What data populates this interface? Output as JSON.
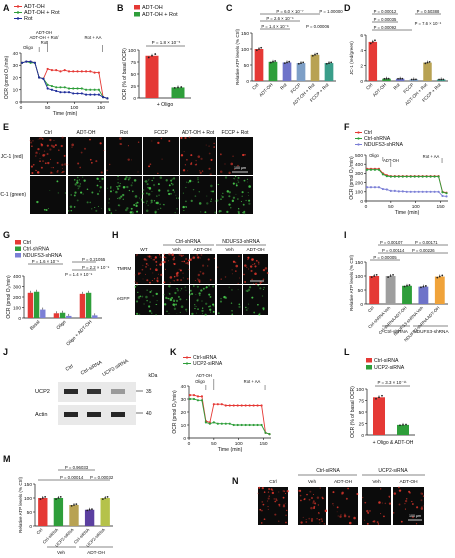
{
  "panels": {
    "A": {
      "letter": "A",
      "legend": [
        "ADT-OH",
        "ADT-OH + Rot",
        "Rot"
      ],
      "colors": [
        "#e53935",
        "#2e9e3a",
        "#1e2c9a"
      ],
      "ylabel": "OCR (pmol O₂/min)",
      "xlabel": "Time (min)",
      "ann": [
        "ADT-OH",
        "ADT-OH + Rot/",
        "Rot",
        "Rot + AA",
        "Oligo"
      ],
      "yticks": [
        "40",
        "30",
        "20",
        "10",
        "0"
      ],
      "xticks": [
        "0",
        "50",
        "100",
        "150"
      ]
    },
    "B": {
      "letter": "B",
      "legend": [
        "ADT-OH",
        "ADT-OH + Rot"
      ],
      "colors": [
        "#e53935",
        "#2e9e3a"
      ],
      "ylabel": "OCR (% of basal OCR)",
      "pval": "P = 1.8 × 10⁻⁵",
      "xlabel": "+ Oligo",
      "yticks": [
        "100",
        "75",
        "50",
        "25",
        "0"
      ]
    },
    "C": {
      "letter": "C",
      "ylabel": "Relative ATP levels (% Ctrl)",
      "p": [
        "P = 6.0 × 10⁻⁷",
        "P = 1.00000",
        "P = 2.6 × 10⁻⁶",
        "P = 1.4 × 10⁻⁶",
        "P = 0.00006"
      ],
      "yticks": [
        "150",
        "100",
        "50",
        "0"
      ]
    },
    "D": {
      "letter": "D",
      "ylabel": "JC-1 (red/green)",
      "p": [
        "P = 0.00012",
        "P = 0.50388",
        "P = 0.00035",
        "P = 0.00092",
        "P = 7.6 × 10⁻⁶"
      ],
      "yticks": [
        "6",
        "4",
        "2",
        "0"
      ]
    },
    "E": {
      "letter": "E",
      "cols": [
        "Ctrl",
        "ADT-OH",
        "Rot",
        "FCCP",
        "ADT-OH + Rot",
        "FCCP + Rot"
      ],
      "rows": [
        "JC-1 (red)",
        "JC-1 (green)"
      ],
      "scale": "100 μm"
    },
    "F": {
      "letter": "F",
      "legend": [
        "Ctrl",
        "Ctrl-shRNA",
        "NDUFS3-shRNA"
      ],
      "colors": [
        "#e53935",
        "#2e9e3a",
        "#7b7fd6"
      ],
      "ann": [
        "Oligo",
        "ADT-OH",
        "Rot + AA"
      ],
      "ylabel": "OCR (pmol O₂/min)",
      "xlabel": "Time (min)",
      "yticks": [
        "500",
        "400",
        "300",
        "200",
        "100",
        "0"
      ],
      "xticks": [
        "0",
        "50",
        "100",
        "150"
      ]
    },
    "G": {
      "letter": "G",
      "legend": [
        "Ctrl",
        "Ctrl-shRNA",
        "NDUFS3-shRNA"
      ],
      "colors": [
        "#e53935",
        "#2e9e3a",
        "#7b7fd6"
      ],
      "ylabel": "OCR (pmol O₂/min)",
      "p": [
        "P = 1.6 × 10⁻⁵",
        "P = 0.21055",
        "P = 2.2 × 10⁻⁵",
        "P = 1.4 × 10⁻⁵"
      ],
      "yticks": [
        "400",
        "300",
        "200",
        "100",
        "0"
      ]
    },
    "H": {
      "letter": "H",
      "groups": [
        "Ctrl-shRNA",
        "NDUFS3-shRNA"
      ],
      "cols": [
        "WT",
        "Veh",
        "ADT-OH",
        "Veh",
        "ADT-OH"
      ],
      "rows": [
        "TMRM",
        "eGFP"
      ],
      "scale": "100 μm"
    },
    "I": {
      "letter": "I",
      "ylabel": "Relative ATP levels (% Ctrl)",
      "p": [
        "P = 0.00107",
        "P = 0.00171",
        "P = 0.00114",
        "P = 0.00226",
        "P = 0.00005"
      ],
      "groups": [
        "Ctrl-shRNA",
        "NDUFS3-shRNA"
      ],
      "yticks": [
        "150",
        "100",
        "50",
        "0"
      ]
    },
    "J": {
      "letter": "J",
      "cols": [
        "Ctrl",
        "Ctrl-siRNA",
        "UCP2-siRNA"
      ],
      "rows": [
        "UCP2",
        "Actin"
      ],
      "kda": "kDa",
      "mw": [
        "35",
        "40"
      ]
    },
    "K": {
      "letter": "K",
      "legend": [
        "Ctrl-siRNA",
        "UCP2-siRNA"
      ],
      "colors": [
        "#e53935",
        "#2e9e3a"
      ],
      "ann": [
        "ADT-OH",
        "Oligo",
        "Rot + AA"
      ],
      "ylabel": "OCR (pmol O₂/min)",
      "xlabel": "Time (min)",
      "yticks": [
        "40",
        "30",
        "20",
        "10",
        "0"
      ],
      "xticks": [
        "0",
        "50",
        "100",
        "150"
      ]
    },
    "L": {
      "letter": "L",
      "legend": [
        "Ctrl-siRNA",
        "UCP2-siRNA"
      ],
      "colors": [
        "#e53935",
        "#2e9e3a"
      ],
      "ylabel": "OCR (% of basal OCR)",
      "pval": "P = 3.3 × 10⁻¹¹",
      "xlabel": "+ Oligo & ADT-OH",
      "yticks": [
        "100",
        "75",
        "50",
        "25",
        "0"
      ]
    },
    "M": {
      "letter": "M",
      "ylabel": "Relative ATP levels (% Ctrl)",
      "p": [
        "P = 0.96033",
        "P = 0.00014",
        "P = 0.00032"
      ],
      "groups": [
        "Veh",
        "ADT-OH"
      ],
      "yticks": [
        "150",
        "100",
        "50",
        "0"
      ]
    },
    "N": {
      "letter": "N",
      "groups": [
        "Ctrl-siRNA",
        "UCP2-siRNA"
      ],
      "cols": [
        "Ctrl",
        "Veh",
        "ADT-OH",
        "Veh",
        "ADT-OH"
      ],
      "scale": "100 μm"
    }
  },
  "chart_data": [
    {
      "panel": "A",
      "type": "line",
      "xlabel": "Time (min)",
      "ylabel": "OCR (pmol O₂/min)",
      "ylim": [
        0,
        40
      ],
      "xlim": [
        0,
        165
      ],
      "x": [
        2,
        10,
        18,
        26,
        34,
        42,
        50,
        58,
        66,
        74,
        82,
        90,
        98,
        106,
        114,
        122,
        130,
        138,
        146,
        154,
        162
      ],
      "series": [
        {
          "name": "ADT-OH",
          "values": [
            32,
            33,
            33,
            32,
            20,
            19,
            27,
            26,
            26,
            25,
            26,
            25,
            25,
            25,
            25,
            25,
            25,
            24,
            24,
            4,
            3
          ]
        },
        {
          "name": "ADT-OH + Rot",
          "values": [
            32,
            33,
            32,
            32,
            20,
            19,
            14,
            13,
            12,
            12,
            12,
            11,
            11,
            11,
            11,
            10,
            10,
            10,
            10,
            4,
            3
          ]
        },
        {
          "name": "Rot",
          "values": [
            32,
            33,
            33,
            32,
            20,
            19,
            11,
            10,
            9,
            8,
            8,
            8,
            7,
            7,
            7,
            6,
            6,
            6,
            6,
            4,
            3
          ]
        }
      ]
    },
    {
      "panel": "B",
      "type": "bar",
      "ylabel": "OCR (% of basal OCR)",
      "categories": [
        "ADT-OH",
        "ADT-OH + Rot"
      ],
      "values": [
        88,
        22
      ],
      "ylim": [
        0,
        100
      ]
    },
    {
      "panel": "C",
      "type": "bar",
      "ylabel": "Relative ATP levels (% Ctrl)",
      "categories": [
        "Ctrl",
        "ADT-OH",
        "Rot",
        "FCCP",
        "ADT-OH + Rot",
        "FCCP + Rot"
      ],
      "values": [
        100,
        60,
        58,
        56,
        82,
        56
      ],
      "ylim": [
        0,
        150
      ]
    },
    {
      "panel": "D",
      "type": "bar",
      "ylabel": "JC-1 (red/green)",
      "categories": [
        "Ctrl",
        "ADT-OH",
        "Rot",
        "FCCP",
        "ADT-OH + Rot",
        "FCCP + Rot"
      ],
      "values": [
        5.1,
        0.3,
        0.3,
        0.2,
        2.4,
        0.2
      ],
      "ylim": [
        0,
        6
      ]
    },
    {
      "panel": "F",
      "type": "line",
      "xlabel": "Time (min)",
      "ylabel": "OCR (pmol O₂/min)",
      "ylim": [
        0,
        500
      ],
      "xlim": [
        0,
        165
      ],
      "x": [
        2,
        10,
        18,
        26,
        34,
        42,
        50,
        58,
        66,
        74,
        82,
        90,
        98,
        106,
        114,
        122,
        130,
        138,
        146,
        154,
        162
      ],
      "series": [
        {
          "name": "Ctrl",
          "values": [
            350,
            350,
            350,
            350,
            300,
            280,
            270,
            270,
            270,
            270,
            270,
            270,
            270,
            270,
            270,
            270,
            270,
            270,
            270,
            100,
            90
          ]
        },
        {
          "name": "Ctrl-shRNA",
          "values": [
            340,
            340,
            340,
            340,
            290,
            270,
            265,
            265,
            265,
            265,
            265,
            265,
            265,
            265,
            265,
            265,
            265,
            265,
            265,
            95,
            85
          ]
        },
        {
          "name": "NDUFS3-shRNA",
          "values": [
            150,
            150,
            150,
            150,
            130,
            125,
            110,
            110,
            105,
            105,
            100,
            100,
            100,
            100,
            100,
            100,
            100,
            100,
            100,
            55,
            50
          ]
        }
      ]
    },
    {
      "panel": "G",
      "type": "bar",
      "ylabel": "OCR (pmol O₂/min)",
      "categories": [
        "Basal",
        "Oligo",
        "Oligo + ADT-OH"
      ],
      "series": [
        {
          "name": "Ctrl",
          "values": [
            240,
            45,
            230
          ]
        },
        {
          "name": "Ctrl-shRNA",
          "values": [
            250,
            50,
            240
          ]
        },
        {
          "name": "NDUFS3-shRNA",
          "values": [
            80,
            20,
            25
          ]
        }
      ],
      "ylim": [
        0,
        400
      ]
    },
    {
      "panel": "I",
      "type": "bar",
      "ylabel": "Relative ATP levels (% Ctrl)",
      "categories": [
        "Ctrl",
        "Ctrl-shRNA Veh",
        "Ctrl-shRNA ADT-OH",
        "NDUFS3-shRNA Veh",
        "NDUFS3-shRNA ADT-OH"
      ],
      "values": [
        100,
        100,
        65,
        62,
        98
      ],
      "ylim": [
        0,
        150
      ]
    },
    {
      "panel": "K",
      "type": "line",
      "xlabel": "Time (min)",
      "ylabel": "OCR (pmol O₂/min)",
      "ylim": [
        0,
        40
      ],
      "xlim": [
        0,
        165
      ],
      "x": [
        2,
        10,
        18,
        26,
        34,
        42,
        50,
        58,
        66,
        74,
        82,
        90,
        98,
        106,
        114,
        122,
        130,
        138,
        146,
        154,
        162
      ],
      "series": [
        {
          "name": "Ctrl-siRNA",
          "values": [
            33,
            33,
            32,
            32,
            13,
            12,
            26,
            26,
            26,
            25,
            25,
            25,
            25,
            25,
            25,
            25,
            25,
            25,
            25,
            4,
            3
          ]
        },
        {
          "name": "UCP2-siRNA",
          "values": [
            30,
            30,
            29,
            29,
            12,
            11,
            12,
            11,
            11,
            11,
            11,
            10,
            10,
            10,
            10,
            10,
            10,
            10,
            10,
            4,
            3
          ]
        }
      ]
    },
    {
      "panel": "L",
      "type": "bar",
      "ylabel": "OCR (% of basal OCR)",
      "categories": [
        "Ctrl-siRNA",
        "UCP2-siRNA"
      ],
      "values": [
        82,
        22
      ],
      "ylim": [
        0,
        100
      ]
    },
    {
      "panel": "M",
      "type": "bar",
      "ylabel": "Relative ATP levels (% Ctrl)",
      "categories": [
        "Ctrl",
        "Ctrl-siRNA",
        "UCP2-siRNA",
        "Ctrl-siRNA",
        "UCP2-siRNA"
      ],
      "values": [
        100,
        100,
        75,
        58,
        100
      ],
      "ylim": [
        0,
        150
      ]
    }
  ]
}
